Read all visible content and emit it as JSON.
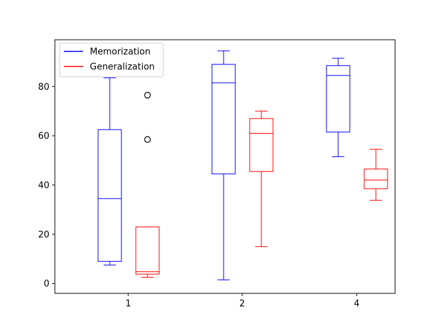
{
  "chart_data": {
    "type": "box",
    "title": "",
    "xlabel": "",
    "ylabel": "",
    "categories": [
      "1",
      "2",
      "4"
    ],
    "ylim": [
      -4,
      99
    ],
    "yticks": [
      0,
      20,
      40,
      60,
      80
    ],
    "grid": false,
    "legend": {
      "placement": "top-left"
    },
    "series": [
      {
        "name": "Memorization",
        "color": "#0000ff",
        "boxes": [
          {
            "category": "1",
            "whisker_low": 7.5,
            "q1": 9,
            "median": 34.5,
            "q3": 62.5,
            "whisker_high": 83.5,
            "outliers": []
          },
          {
            "category": "2",
            "whisker_low": 1.5,
            "q1": 44.5,
            "median": 81.5,
            "q3": 89,
            "whisker_high": 94.5,
            "outliers": []
          },
          {
            "category": "4",
            "whisker_low": 51.5,
            "q1": 61.5,
            "median": 84.5,
            "q3": 88.5,
            "whisker_high": 91.5,
            "outliers": []
          }
        ]
      },
      {
        "name": "Generalization",
        "color": "#ff0000",
        "boxes": [
          {
            "category": "1",
            "whisker_low": 2.5,
            "q1": 3.8,
            "median": 4.8,
            "q3": 23,
            "whisker_high": 23,
            "outliers": [
              58.5,
              76.5
            ]
          },
          {
            "category": "2",
            "whisker_low": 15,
            "q1": 45.5,
            "median": 61,
            "q3": 67,
            "whisker_high": 70,
            "outliers": []
          },
          {
            "category": "4",
            "whisker_low": 33.8,
            "q1": 38.5,
            "median": 42,
            "q3": 46.5,
            "whisker_high": 54.5,
            "outliers": []
          }
        ]
      }
    ]
  }
}
